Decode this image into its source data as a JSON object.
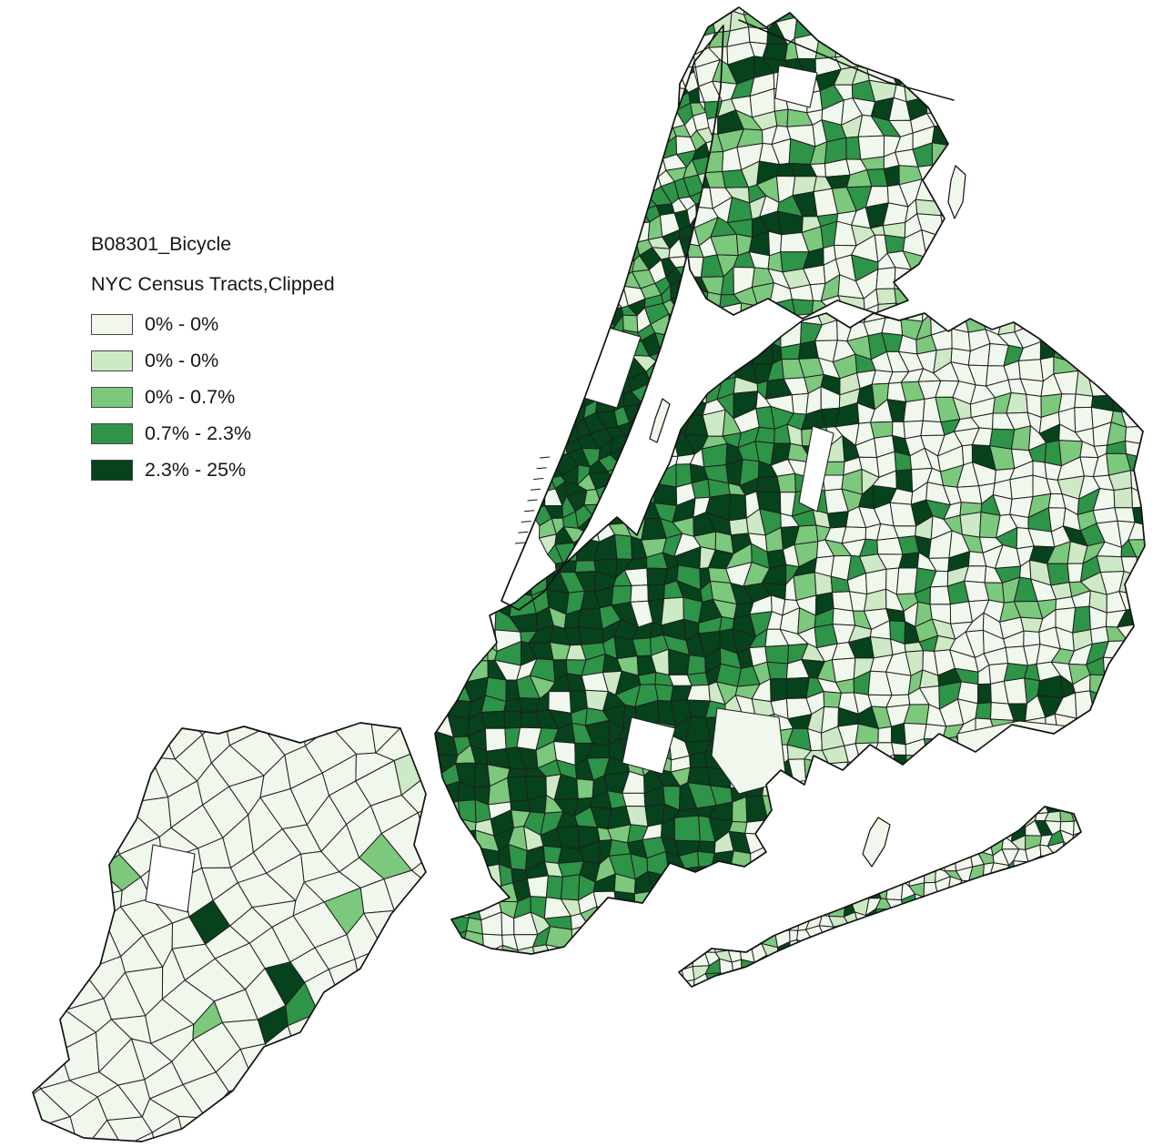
{
  "legend": {
    "title": "B08301_Bicycle",
    "subtitle": "NYC Census Tracts,Clipped",
    "classes": [
      {
        "label": "0% - 0%",
        "color": "#f0f7ec"
      },
      {
        "label": "0% - 0%",
        "color": "#cde9c5"
      },
      {
        "label": "0% - 0.7%",
        "color": "#7cc87d"
      },
      {
        "label": "0.7% - 2.3%",
        "color": "#2e9448"
      },
      {
        "label": "2.3% - 25%",
        "color": "#06421b"
      }
    ],
    "swatch_border_color": "#454545"
  },
  "map": {
    "background_color": "#ffffff",
    "water_color": "#ffffff",
    "tract_border_color": "#1f1f1f",
    "outline_color": "#121212"
  }
}
